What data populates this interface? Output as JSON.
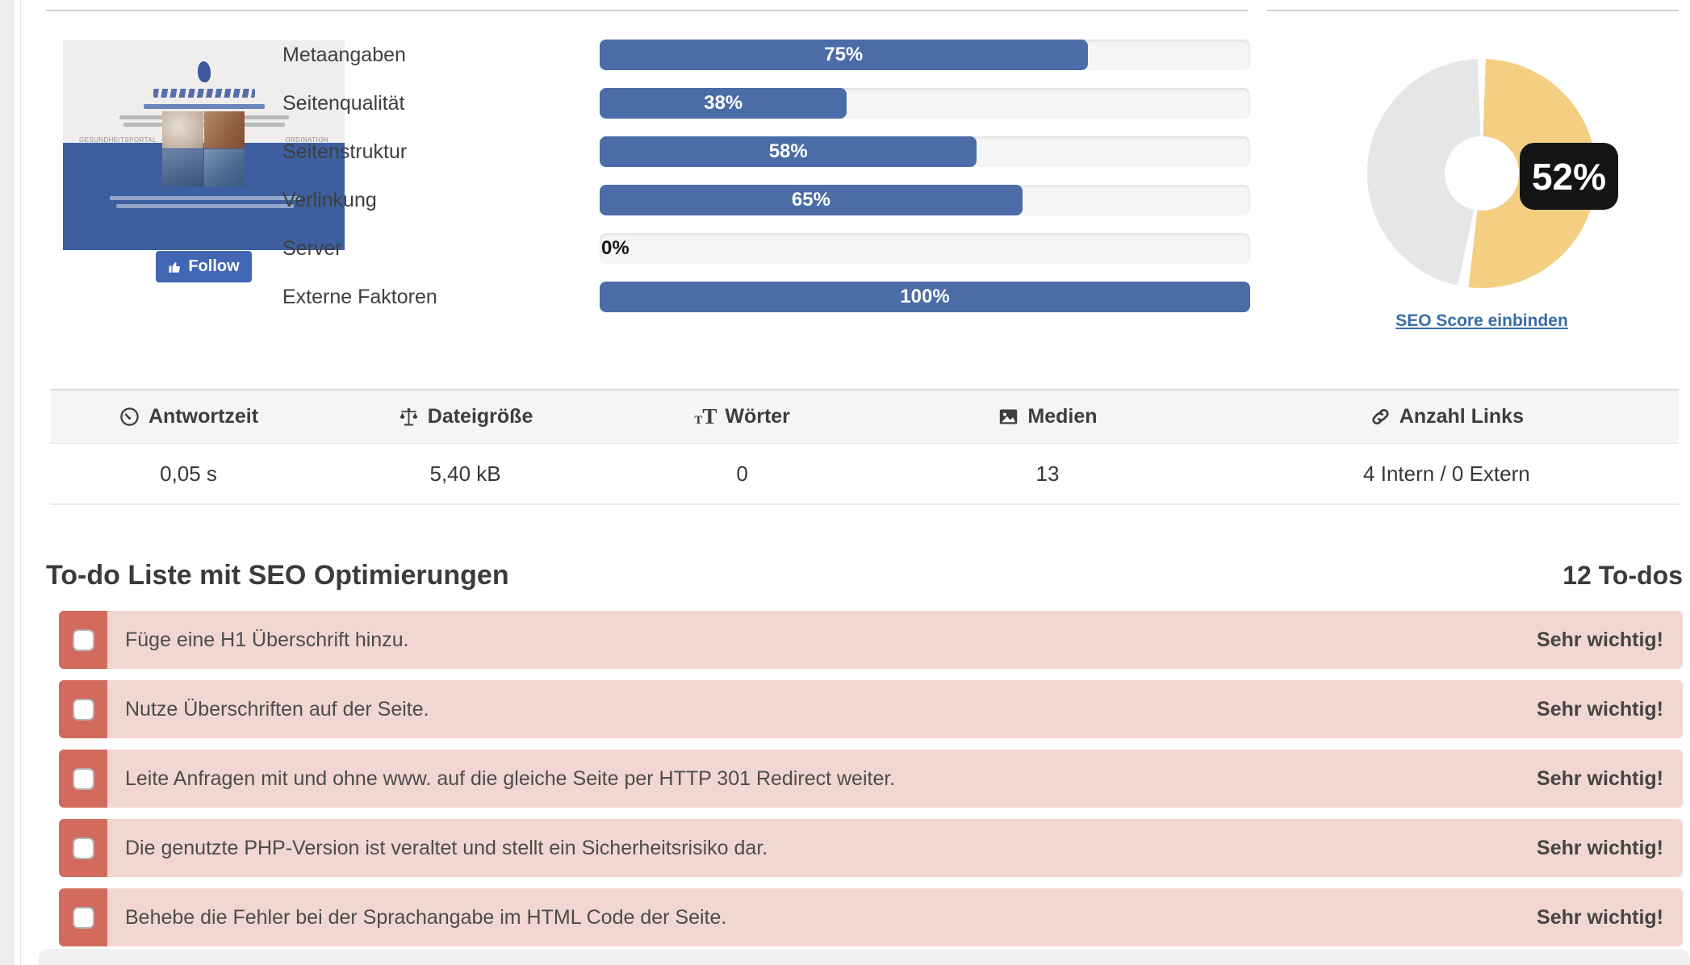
{
  "preview": {
    "follow_label": "Follow",
    "portal_label": "GESUNDHEITSPORTAL",
    "ordination_label": "ORDINATION"
  },
  "chart_data": [
    {
      "type": "bar",
      "orientation": "horizontal",
      "categories": [
        "Metaangaben",
        "Seitenqualität",
        "Seitenstruktur",
        "Verlinkung",
        "Server",
        "Externe Faktoren"
      ],
      "values": [
        75,
        38,
        58,
        65,
        0,
        100
      ],
      "value_labels": [
        "75%",
        "38%",
        "58%",
        "65%",
        "0%",
        "100%"
      ],
      "xlim": [
        0,
        100
      ],
      "bar_color": "#4b6ca6",
      "track_color": "#f5f5f5",
      "grid": false
    },
    {
      "type": "pie",
      "donut": true,
      "labels": [
        "SEO Score",
        "Rest"
      ],
      "values": [
        52,
        48
      ],
      "colors": [
        "#f4cf82",
        "#e6e6e6"
      ],
      "center_label": "52%"
    }
  ],
  "score_panel": {
    "embed_link_label": "SEO Score einbinden"
  },
  "metrics": {
    "columns": [
      {
        "icon": "tachometer-icon",
        "label": "Antwortzeit",
        "value": "0,05 s"
      },
      {
        "icon": "scale-icon",
        "label": "Dateigröße",
        "value": "5,40 kB"
      },
      {
        "icon": "text-icon",
        "label": "Wörter",
        "value": "0"
      },
      {
        "icon": "media-icon",
        "label": "Medien",
        "value": "13"
      },
      {
        "icon": "link-icon",
        "label": "Anzahl Links",
        "value": "4 Intern / 0 Extern"
      }
    ]
  },
  "todo": {
    "heading": "To-do Liste mit SEO Optimierungen",
    "count_label": "12 To-dos",
    "items": [
      {
        "text": "Füge eine H1 Überschrift hinzu.",
        "severity": "Sehr wichtig!"
      },
      {
        "text": "Nutze Überschriften auf der Seite.",
        "severity": "Sehr wichtig!"
      },
      {
        "text": "Leite Anfragen mit und ohne www. auf die gleiche Seite per HTTP 301 Redirect weiter.",
        "severity": "Sehr wichtig!"
      },
      {
        "text": "Die genutzte PHP-Version ist veraltet und stellt ein Sicherheitsrisiko dar.",
        "severity": "Sehr wichtig!"
      },
      {
        "text": "Behebe die Fehler bei der Sprachangabe im HTML Code der Seite.",
        "severity": "Sehr wichtig!"
      }
    ]
  }
}
